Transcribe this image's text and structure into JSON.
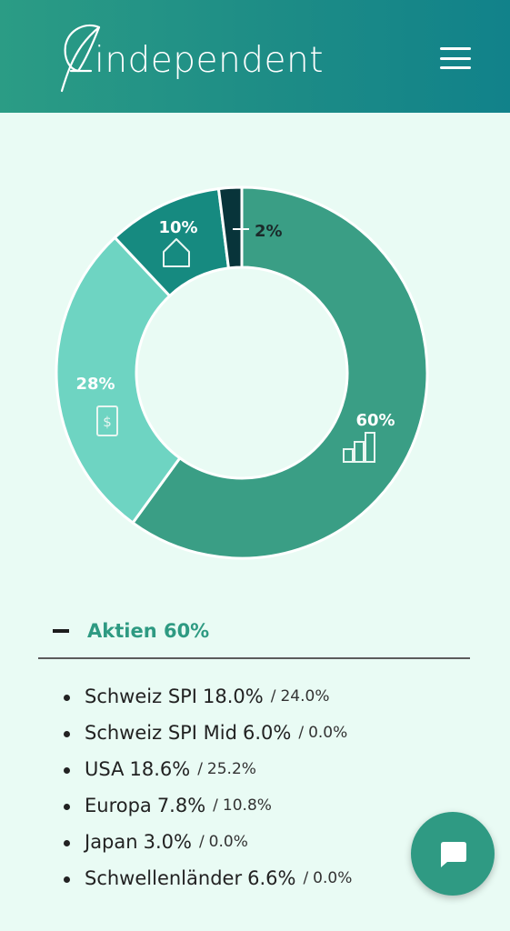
{
  "header": {
    "logo_text": "independent",
    "menu_icon": "hamburger-menu-icon"
  },
  "colors": {
    "header_start": "#2b9c85",
    "header_end": "#11828a",
    "background": "#e9fbf4",
    "accent": "#2e9a82"
  },
  "chart_data": {
    "type": "pie",
    "donut": true,
    "slices": [
      {
        "value": 60,
        "label": "60%",
        "icon": "bar-chart-icon",
        "color": "#3a9e85",
        "label_color": "#ffffff"
      },
      {
        "value": 28,
        "label": "28%",
        "icon": "cash-icon",
        "color": "#6ed4c2",
        "label_color": "#ffffff"
      },
      {
        "value": 10,
        "label": "10%",
        "icon": "house-icon",
        "color": "#168a80",
        "label_color": "#ffffff"
      },
      {
        "value": 2,
        "label": "2%",
        "icon": "",
        "color": "#08343a",
        "label_color": "#1b2a2a"
      }
    ]
  },
  "section": {
    "title": "Aktien 60%",
    "toggle_icon": "collapse-minus-icon"
  },
  "holdings": [
    {
      "name": "Schweiz SPI",
      "actual": "18.0%",
      "target": "24.0%"
    },
    {
      "name": "Schweiz SPI Mid",
      "actual": "6.0%",
      "target": "0.0%"
    },
    {
      "name": "USA",
      "actual": "18.6%",
      "target": "25.2%"
    },
    {
      "name": "Europa",
      "actual": "7.8%",
      "target": "10.8%"
    },
    {
      "name": "Japan",
      "actual": "3.0%",
      "target": "0.0%"
    },
    {
      "name": "Schwellenländer",
      "actual": "6.6%",
      "target": "0.0%"
    }
  ],
  "chat": {
    "icon": "chat-bubble-icon"
  }
}
